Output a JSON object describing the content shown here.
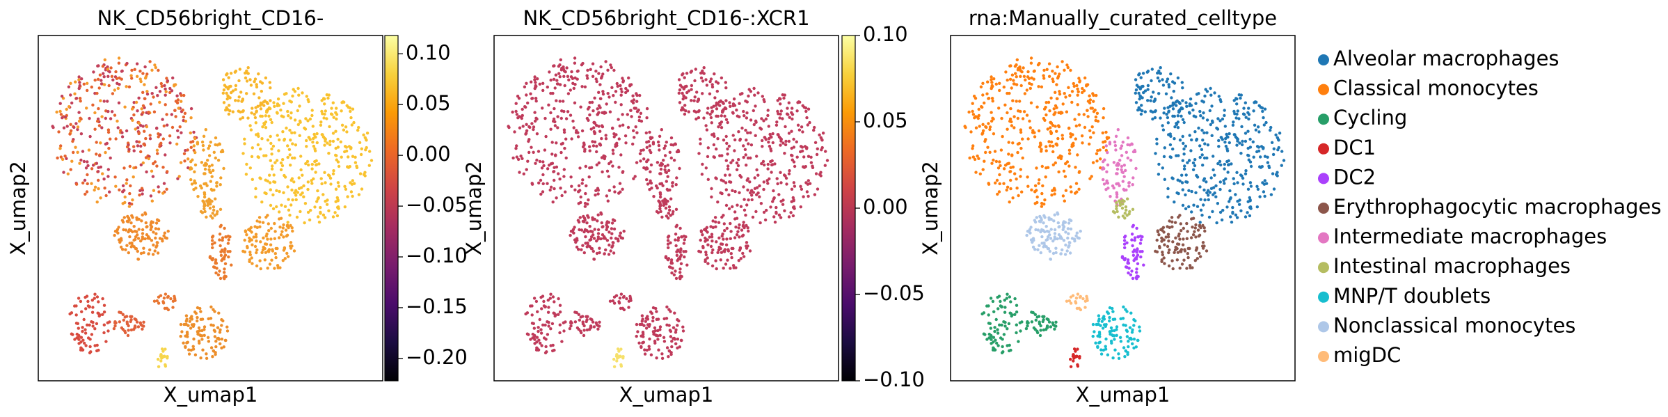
{
  "chart_data": [
    {
      "type": "scatter",
      "title": "NK_CD56bright_CD16-",
      "xlabel": "X_umap1",
      "ylabel": "X_umap2",
      "colormap": "inferno",
      "clim": [
        -0.222,
        0.118
      ],
      "cticks": [
        {
          "value": 0.1,
          "label": "0.10"
        },
        {
          "value": 0.05,
          "label": "0.05"
        },
        {
          "value": 0,
          "label": "0.00"
        },
        {
          "value": -0.05,
          "label": "−0.05"
        },
        {
          "value": -0.1,
          "label": "−0.10"
        },
        {
          "value": -0.15,
          "label": "−0.15"
        },
        {
          "value": -0.2,
          "label": "−0.20"
        }
      ]
    },
    {
      "type": "scatter",
      "title": "NK_CD56bright_CD16-:XCR1",
      "xlabel": "X_umap1",
      "ylabel": "X_umap2",
      "colormap": "inferno",
      "clim": [
        -0.1,
        0.1
      ],
      "cticks": [
        {
          "value": 0.1,
          "label": "0.10"
        },
        {
          "value": 0.05,
          "label": "0.05"
        },
        {
          "value": 0,
          "label": "0.00"
        },
        {
          "value": -0.05,
          "label": "−0.05"
        },
        {
          "value": -0.1,
          "label": "−0.10"
        }
      ]
    },
    {
      "type": "scatter",
      "title": "rna:Manually_curated_celltype",
      "xlabel": "X_umap1",
      "ylabel": "X_umap2",
      "categories": [
        "Alveolar macrophages",
        "Classical monocytes",
        "Cycling",
        "DC1",
        "DC2",
        "Erythrophagocytic macrophages",
        "Intermediate macrophages",
        "Intestinal macrophages",
        "MNP/T doublets",
        "Nonclassical monocytes",
        "migDC"
      ],
      "colors": [
        "#1f77b4",
        "#ff7f0e",
        "#279e68",
        "#d62728",
        "#aa40fc",
        "#8c564b",
        "#e377c2",
        "#b5bd61",
        "#17becf",
        "#aec7e8",
        "#ffbb78"
      ]
    }
  ]
}
